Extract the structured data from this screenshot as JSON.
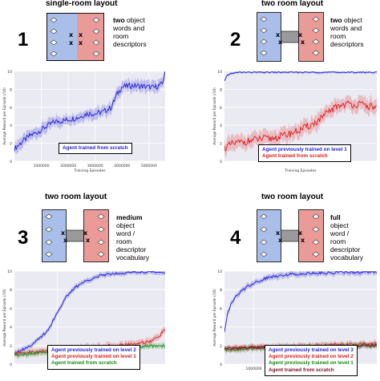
{
  "panels": [
    {
      "id": "1",
      "layout_title": "single-room layout",
      "level_label": "1",
      "description": {
        "bold": "two",
        "rest": [
          "object",
          "words and",
          "room",
          "descriptors"
        ],
        "first_suffix": " object"
      },
      "rooms": "single"
    },
    {
      "id": "2",
      "layout_title": "two room layout",
      "level_label": "2",
      "description": {
        "bold": "two",
        "rest": [
          "words and",
          "room",
          "descriptors"
        ],
        "first_suffix": " object"
      },
      "rooms": "double"
    },
    {
      "id": "3",
      "layout_title": "two room layout",
      "level_label": "3",
      "description": {
        "bold": "medium",
        "rest": [
          "object",
          "word /",
          "room",
          "descriptor",
          "vocabulary"
        ],
        "first_suffix": ""
      },
      "rooms": "double"
    },
    {
      "id": "4",
      "layout_title": "two room layout",
      "level_label": "4",
      "description": {
        "bold": "full",
        "rest": [
          "object",
          "word /",
          "room",
          "descriptor",
          "vocabulary"
        ],
        "first_suffix": ""
      },
      "rooms": "double"
    }
  ],
  "colors": {
    "blue_room": "#a9bfea",
    "red_room": "#ea9b98",
    "corridor": "#9a9a9a",
    "blue": "#1f1fd6",
    "red": "#e01a1a",
    "green": "#1a8c1a",
    "darkred": "#7a1028",
    "plot_bg": "#eaeaf2"
  },
  "chart_data": [
    {
      "type": "line",
      "panel": "1",
      "xlabel": "Training Episodes",
      "ylabel": "Average Reward per Episode (/10)",
      "xticks": [
        1000000,
        2000000,
        3000000,
        4000000,
        5000000
      ],
      "xtick_labels": [
        "1000000",
        "2000000",
        "3000000",
        "4000000",
        "5000000"
      ],
      "yticks": [
        0,
        2,
        4,
        6,
        8,
        10
      ],
      "xlim": [
        0,
        5600000
      ],
      "ylim": [
        0,
        10
      ],
      "series": [
        {
          "name": "Agent trained from scratch",
          "color": "blue",
          "x": [
            0,
            300000,
            600000,
            900000,
            1200000,
            1500000,
            1800000,
            2100000,
            2400000,
            2700000,
            3000000,
            3300000,
            3600000,
            3800000,
            4000000,
            4300000,
            4600000,
            4900000,
            5200000,
            5500000,
            5600000
          ],
          "y": [
            1.4,
            2.2,
            2.9,
            3.3,
            3.9,
            4.4,
            4.5,
            4.7,
            4.9,
            5.3,
            5.3,
            5.5,
            6.0,
            7.4,
            8.3,
            8.4,
            8.4,
            8.3,
            8.2,
            8.6,
            10.2
          ],
          "spread": 0.7
        }
      ],
      "legend": "bottom-right"
    },
    {
      "type": "line",
      "panel": "2",
      "xlabel": "Training Episodes",
      "ylabel": "Average Reward per Episode (/10)",
      "xticks": [],
      "xtick_labels": [],
      "yticks": [
        0,
        2,
        4,
        6,
        8,
        10
      ],
      "xlim": [
        0,
        1
      ],
      "ylim": [
        0,
        10
      ],
      "series": [
        {
          "name": "Agent previously trained on level 1",
          "color": "blue",
          "x": [
            0,
            0.02,
            0.05,
            0.1,
            0.2,
            0.3,
            0.4,
            0.5,
            0.6,
            0.7,
            0.8,
            0.9,
            1.0
          ],
          "y": [
            8.9,
            9.6,
            9.8,
            9.9,
            9.9,
            9.9,
            9.9,
            9.9,
            9.9,
            9.9,
            9.9,
            9.9,
            9.9
          ],
          "spread": 0.15
        },
        {
          "name": "Agent trained from scratch",
          "color": "red",
          "x": [
            0,
            0.05,
            0.1,
            0.15,
            0.2,
            0.25,
            0.3,
            0.35,
            0.4,
            0.45,
            0.5,
            0.55,
            0.6,
            0.65,
            0.7,
            0.75,
            0.8,
            0.85,
            0.9,
            0.95,
            1.0
          ],
          "y": [
            1.5,
            1.9,
            2.1,
            2.2,
            2.4,
            2.5,
            2.5,
            2.7,
            2.9,
            3.2,
            3.5,
            3.9,
            4.3,
            5.0,
            5.7,
            6.2,
            6.4,
            6.3,
            6.3,
            6.1,
            6.0
          ],
          "spread": 0.9
        }
      ],
      "legend": "bottom-right"
    },
    {
      "type": "line",
      "panel": "3",
      "xlabel": "",
      "ylabel": "Average Reward per Episode (/10)",
      "xticks": [
        1000000
      ],
      "xtick_labels": [
        "1000000"
      ],
      "yticks": [
        0,
        2,
        4,
        6,
        8,
        10
      ],
      "xlim": [
        0,
        3500000
      ],
      "ylim": [
        0,
        10
      ],
      "series": [
        {
          "name": "Agent previously trained on level 2",
          "color": "blue",
          "x": [
            0,
            200000,
            400000,
            600000,
            800000,
            1000000,
            1200000,
            1400000,
            1600000,
            1800000,
            2000000,
            2200000,
            2400000,
            2600000,
            2800000,
            3000000,
            3200000,
            3500000
          ],
          "y": [
            1.2,
            1.6,
            2.1,
            2.8,
            3.8,
            5.6,
            7.2,
            8.2,
            8.8,
            9.2,
            9.5,
            9.7,
            9.8,
            9.8,
            9.9,
            9.9,
            9.9,
            9.9
          ],
          "spread": 0.3
        },
        {
          "name": "Agent previously trained on level 1",
          "color": "red",
          "x": [
            0,
            400000,
            800000,
            1200000,
            1600000,
            2000000,
            2400000,
            2800000,
            3200000,
            3400000,
            3500000
          ],
          "y": [
            1.1,
            1.3,
            1.4,
            1.6,
            1.8,
            1.9,
            2.0,
            2.2,
            2.5,
            3.2,
            3.8
          ],
          "spread": 0.4
        },
        {
          "name": "Agent trained from scratch",
          "color": "green",
          "x": [
            0,
            500000,
            1000000,
            1500000,
            2000000,
            2500000,
            3000000,
            3500000
          ],
          "y": [
            1.0,
            1.2,
            1.4,
            1.6,
            1.6,
            1.8,
            1.9,
            2.0
          ],
          "spread": 0.35
        }
      ],
      "legend": "bottom-right"
    },
    {
      "type": "line",
      "panel": "4",
      "xlabel": "",
      "ylabel": "Average Reward per Episode (/10)",
      "xticks": [
        1000000
      ],
      "xtick_labels": [
        "1000000"
      ],
      "yticks": [
        0,
        2,
        4,
        6,
        8,
        10
      ],
      "xlim": [
        0,
        5200000
      ],
      "ylim": [
        0,
        10
      ],
      "series": [
        {
          "name": "Agent previously trained on level 3",
          "color": "blue",
          "x": [
            0,
            100000,
            250000,
            400000,
            600000,
            800000,
            1000000,
            1300000,
            1600000,
            2000000,
            2500000,
            3000000,
            3500000,
            4000000,
            4500000,
            5200000
          ],
          "y": [
            3.5,
            5.5,
            6.6,
            7.3,
            7.9,
            8.4,
            8.7,
            9.1,
            9.4,
            9.6,
            9.7,
            9.8,
            9.8,
            9.9,
            9.9,
            9.9
          ],
          "spread": 0.35
        },
        {
          "name": "Agent previously trained on level 2",
          "color": "red",
          "x": [
            0,
            1000000,
            2000000,
            3000000,
            4000000,
            5200000
          ],
          "y": [
            1.6,
            1.8,
            1.9,
            2.0,
            2.1,
            2.2
          ],
          "spread": 0.35
        },
        {
          "name": "Agent previously trained on level 1",
          "color": "green",
          "x": [
            0,
            1000000,
            2000000,
            3000000,
            4000000,
            5200000
          ],
          "y": [
            1.5,
            1.7,
            1.8,
            1.9,
            2.0,
            2.0
          ],
          "spread": 0.35
        },
        {
          "name": "Agent trained from scratch",
          "color": "darkred",
          "x": [
            0,
            1000000,
            2000000,
            3000000,
            4000000,
            5200000
          ],
          "y": [
            1.7,
            1.8,
            1.8,
            1.9,
            1.9,
            2.0
          ],
          "spread": 0.3
        }
      ],
      "legend": "bottom-right"
    }
  ]
}
